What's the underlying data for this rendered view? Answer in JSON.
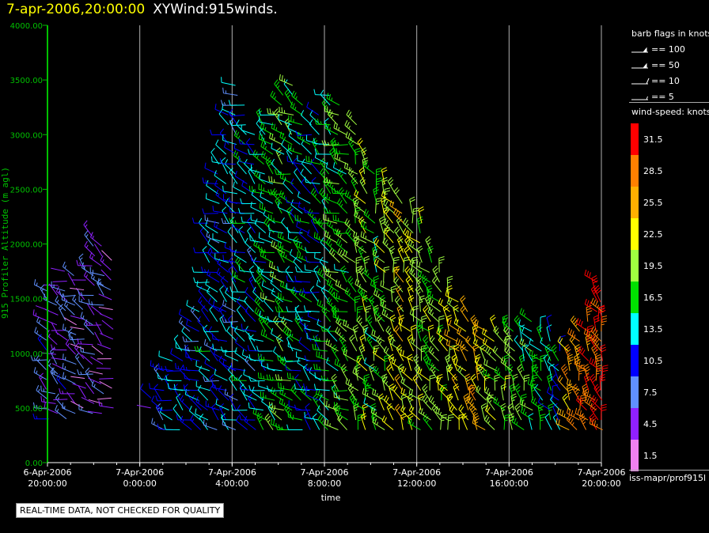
{
  "header": {
    "timestamp": "7-apr-2006,20:00:00",
    "product": "XYWind:915winds."
  },
  "chart_data": {
    "type": "scatter",
    "subtype": "wind-barbs",
    "xlabel": "time",
    "ylabel": "915 Profiler Altitude (m agl)",
    "ylim": [
      0,
      4000
    ],
    "y_ticks": [
      "0.00",
      "500.00",
      "1000.00",
      "1500.00",
      "2000.00",
      "2500.00",
      "3000.00",
      "3500.00",
      "4000.00"
    ],
    "x_ticks": [
      {
        "hour": 0,
        "date": "6-Apr-2006",
        "time": "20:00:00"
      },
      {
        "hour": 4,
        "date": "7-Apr-2006",
        "time": "0:00:00"
      },
      {
        "hour": 8,
        "date": "7-Apr-2006",
        "time": "4:00:00"
      },
      {
        "hour": 12,
        "date": "7-Apr-2006",
        "time": "8:00:00"
      },
      {
        "hour": 16,
        "date": "7-Apr-2006",
        "time": "12:00:00"
      },
      {
        "hour": 20,
        "date": "7-Apr-2006",
        "time": "16:00:00"
      },
      {
        "hour": 24,
        "date": "7-Apr-2006",
        "time": "20:00:00"
      }
    ],
    "grid": true,
    "legend_position": "right",
    "colors": {
      "axis": "#00c000",
      "grid": "#b0b0b0",
      "background": "#000000"
    },
    "profile_columns": [
      {
        "hour": 0.0,
        "ymin": 400,
        "ymax": 1650,
        "speed": 7.5
      },
      {
        "hour": 0.4,
        "ymin": 450,
        "ymax": 1700,
        "speed": 6.0
      },
      {
        "hour": 0.8,
        "ymin": 400,
        "ymax": 1750,
        "speed": 7.0
      },
      {
        "hour": 1.2,
        "ymin": 450,
        "ymax": 1750,
        "speed": 5.5
      },
      {
        "hour": 1.6,
        "ymin": 500,
        "ymax": 1800,
        "speed": 5.0
      },
      {
        "hour": 2.0,
        "ymin": 450,
        "ymax": 2100,
        "speed": 6.5
      },
      {
        "hour": 2.4,
        "ymin": 450,
        "ymax": 2000,
        "speed": 5.0
      },
      {
        "hour": 2.8,
        "ymin": 500,
        "ymax": 1900,
        "speed": 4.5
      },
      {
        "hour": 4.5,
        "ymin": 500,
        "ymax": 600,
        "speed": 7.5
      },
      {
        "hour": 5.0,
        "ymin": 300,
        "ymax": 900,
        "speed": 9.0
      },
      {
        "hour": 5.4,
        "ymin": 300,
        "ymax": 1000,
        "speed": 11.0
      },
      {
        "hour": 5.8,
        "ymin": 300,
        "ymax": 1100,
        "speed": 12.0
      },
      {
        "hour": 6.2,
        "ymin": 300,
        "ymax": 1300,
        "speed": 10.5
      },
      {
        "hour": 6.6,
        "ymin": 300,
        "ymax": 1400,
        "speed": 11.5
      },
      {
        "hour": 7.0,
        "ymin": 300,
        "ymax": 2200,
        "speed": 12.5
      },
      {
        "hour": 7.4,
        "ymin": 300,
        "ymax": 2800,
        "speed": 11.0
      },
      {
        "hour": 7.8,
        "ymin": 300,
        "ymax": 3200,
        "speed": 12.0
      },
      {
        "hour": 8.2,
        "ymin": 300,
        "ymax": 3500,
        "speed": 10.5
      },
      {
        "hour": 8.6,
        "ymin": 300,
        "ymax": 3300,
        "speed": 13.0
      },
      {
        "hour": 9.0,
        "ymin": 300,
        "ymax": 3000,
        "speed": 11.5
      },
      {
        "hour": 9.4,
        "ymin": 300,
        "ymax": 3100,
        "speed": 14.5
      },
      {
        "hour": 9.8,
        "ymin": 300,
        "ymax": 3200,
        "speed": 15.5
      },
      {
        "hour": 10.2,
        "ymin": 300,
        "ymax": 3400,
        "speed": 17.0
      },
      {
        "hour": 10.6,
        "ymin": 300,
        "ymax": 3500,
        "speed": 16.0
      },
      {
        "hour": 11.0,
        "ymin": 300,
        "ymax": 3300,
        "speed": 14.0
      },
      {
        "hour": 11.4,
        "ymin": 300,
        "ymax": 3100,
        "speed": 13.0
      },
      {
        "hour": 11.8,
        "ymin": 300,
        "ymax": 3200,
        "speed": 12.5
      },
      {
        "hour": 12.2,
        "ymin": 300,
        "ymax": 3400,
        "speed": 15.0
      },
      {
        "hour": 12.6,
        "ymin": 300,
        "ymax": 3300,
        "speed": 16.5
      },
      {
        "hour": 13.0,
        "ymin": 300,
        "ymax": 3000,
        "speed": 17.5
      },
      {
        "hour": 13.4,
        "ymin": 300,
        "ymax": 3100,
        "speed": 18.0
      },
      {
        "hour": 13.8,
        "ymin": 300,
        "ymax": 2900,
        "speed": 19.0
      },
      {
        "hour": 14.2,
        "ymin": 300,
        "ymax": 2700,
        "speed": 17.0
      },
      {
        "hour": 14.6,
        "ymin": 300,
        "ymax": 2600,
        "speed": 19.5
      },
      {
        "hour": 15.0,
        "ymin": 300,
        "ymax": 2500,
        "speed": 21.0
      },
      {
        "hour": 15.4,
        "ymin": 300,
        "ymax": 2400,
        "speed": 22.5
      },
      {
        "hour": 15.8,
        "ymin": 300,
        "ymax": 2300,
        "speed": 21.5
      },
      {
        "hour": 16.2,
        "ymin": 300,
        "ymax": 2200,
        "speed": 20.0
      },
      {
        "hour": 16.6,
        "ymin": 300,
        "ymax": 2000,
        "speed": 19.0
      },
      {
        "hour": 17.0,
        "ymin": 300,
        "ymax": 1800,
        "speed": 18.5
      },
      {
        "hour": 17.4,
        "ymin": 300,
        "ymax": 1600,
        "speed": 21.0
      },
      {
        "hour": 17.8,
        "ymin": 300,
        "ymax": 1500,
        "speed": 22.0
      },
      {
        "hour": 18.2,
        "ymin": 300,
        "ymax": 1400,
        "speed": 23.5
      },
      {
        "hour": 18.6,
        "ymin": 300,
        "ymax": 1200,
        "speed": 24.5
      },
      {
        "hour": 19.0,
        "ymin": 300,
        "ymax": 1200,
        "speed": 22.5
      },
      {
        "hour": 19.4,
        "ymin": 300,
        "ymax": 1200,
        "speed": 20.5
      },
      {
        "hour": 19.8,
        "ymin": 300,
        "ymax": 1200,
        "speed": 19.0
      },
      {
        "hour": 20.2,
        "ymin": 300,
        "ymax": 1200,
        "speed": 18.0
      },
      {
        "hour": 20.6,
        "ymin": 300,
        "ymax": 1200,
        "speed": 17.0
      },
      {
        "hour": 21.0,
        "ymin": 300,
        "ymax": 1300,
        "speed": 16.0
      },
      {
        "hour": 21.4,
        "ymin": 300,
        "ymax": 1200,
        "speed": 15.0
      },
      {
        "hour": 21.8,
        "ymin": 300,
        "ymax": 1200,
        "speed": 14.0
      },
      {
        "hour": 22.2,
        "ymin": 300,
        "ymax": 1100,
        "speed": 13.0
      },
      {
        "hour": 22.6,
        "ymin": 300,
        "ymax": 1100,
        "speed": 25.0
      },
      {
        "hour": 23.0,
        "ymin": 300,
        "ymax": 1200,
        "speed": 27.0
      },
      {
        "hour": 23.4,
        "ymin": 300,
        "ymax": 1300,
        "speed": 29.0
      },
      {
        "hour": 23.8,
        "ymin": 300,
        "ymax": 1650,
        "speed": 31.0
      },
      {
        "hour": 24.0,
        "ymin": 300,
        "ymax": 1500,
        "speed": 31.5
      }
    ]
  },
  "legend": {
    "barb_title": "barb flags in knots",
    "barbs": [
      {
        "label": "== 100",
        "kind": "pennant"
      },
      {
        "label": "== 50",
        "kind": "pennant"
      },
      {
        "label": "== 10",
        "kind": "full"
      },
      {
        "label": "== 5",
        "kind": "half"
      }
    ],
    "speed_title": "wind-speed: knots",
    "speed_bins": [
      {
        "label": "31.5",
        "color": "#ff0000"
      },
      {
        "label": "28.5",
        "color": "#ff8000"
      },
      {
        "label": "25.5",
        "color": "#ffb000"
      },
      {
        "label": "22.5",
        "color": "#ffff00"
      },
      {
        "label": "19.5",
        "color": "#a0ff40"
      },
      {
        "label": "16.5",
        "color": "#00e000"
      },
      {
        "label": "13.5",
        "color": "#00ffff"
      },
      {
        "label": "10.5",
        "color": "#0000ff"
      },
      {
        "label": "7.5",
        "color": "#6090ff"
      },
      {
        "label": "4.5",
        "color": "#9020ff"
      },
      {
        "label": "1.5",
        "color": "#f080f0"
      }
    ]
  },
  "footer": {
    "source": "iss-mapr/prof915l",
    "qc_notice": "REAL-TIME DATA, NOT CHECKED FOR QUALITY"
  }
}
